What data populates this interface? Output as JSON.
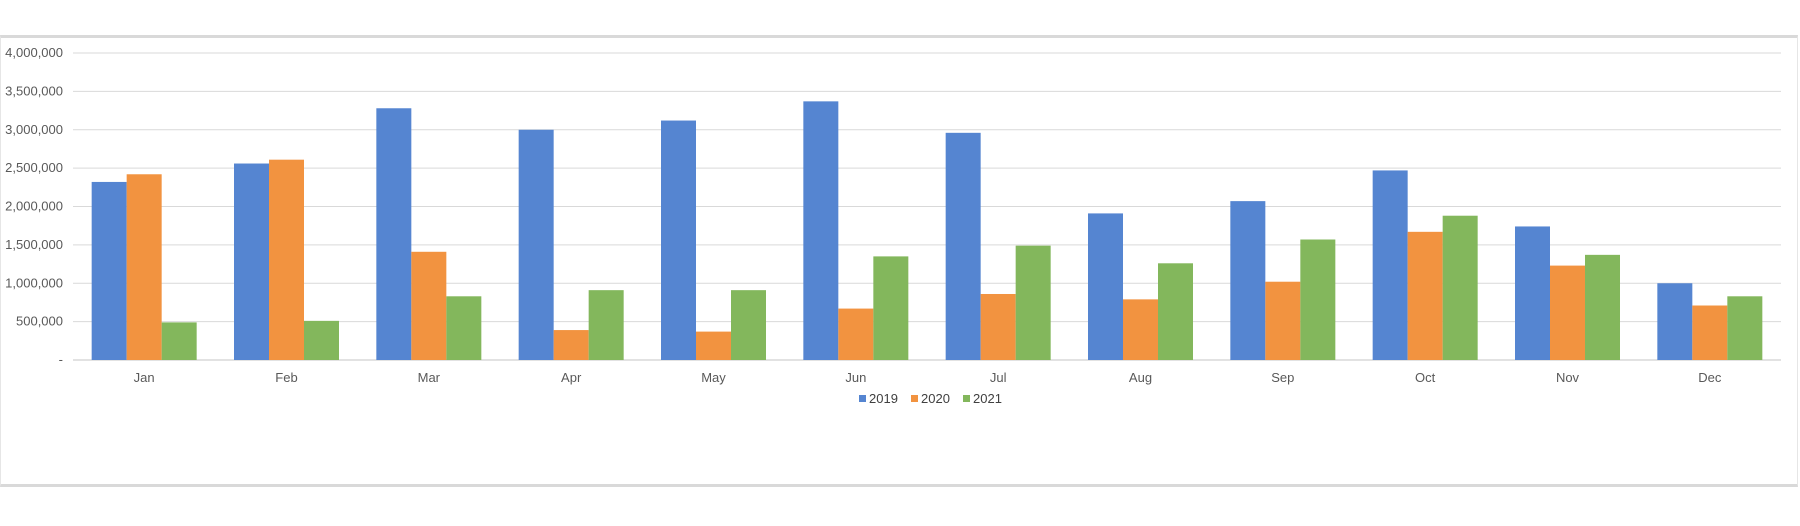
{
  "chart_data": {
    "type": "bar",
    "title": "",
    "xlabel": "",
    "ylabel": "",
    "categories": [
      "Jan",
      "Feb",
      "Mar",
      "Apr",
      "May",
      "Jun",
      "Jul",
      "Aug",
      "Sep",
      "Oct",
      "Nov",
      "Dec"
    ],
    "series": [
      {
        "name": "2019",
        "color": "#5585d1",
        "values": [
          2320000,
          2560000,
          3280000,
          3000000,
          3120000,
          3370000,
          2960000,
          1910000,
          2070000,
          2470000,
          1740000,
          1000000
        ]
      },
      {
        "name": "2020",
        "color": "#f29340",
        "values": [
          2420000,
          2610000,
          1410000,
          390000,
          370000,
          670000,
          860000,
          790000,
          1020000,
          1670000,
          1230000,
          710000
        ]
      },
      {
        "name": "2021",
        "color": "#83b75c",
        "values": [
          490000,
          510000,
          830000,
          910000,
          910000,
          1350000,
          1490000,
          1260000,
          1570000,
          1880000,
          1370000,
          830000
        ]
      }
    ],
    "ylim": [
      0,
      4000000
    ],
    "yticks": [
      0,
      500000,
      1000000,
      1500000,
      2000000,
      2500000,
      3000000,
      3500000,
      4000000
    ],
    "ytick_labels": [
      "-",
      "500,000",
      "1,000,000",
      "1,500,000",
      "2,000,000",
      "2,500,000",
      "3,000,000",
      "3,500,000",
      "4,000,000"
    ],
    "grid": true,
    "legend_position": "bottom-center",
    "gridline_color": "#d9d9d9"
  }
}
